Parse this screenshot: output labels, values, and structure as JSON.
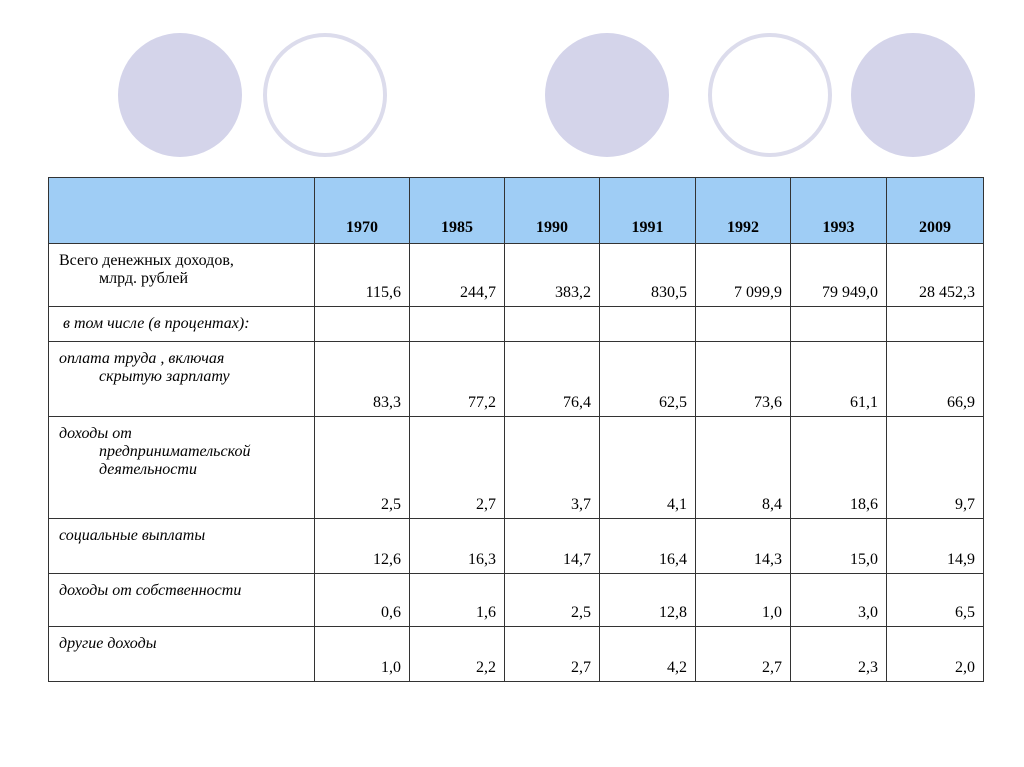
{
  "table": {
    "years": [
      "1970",
      "1985",
      "1990",
      "1991",
      "1992",
      "1993",
      "2009"
    ],
    "rows": {
      "total": {
        "label_line1": "Всего денежных доходов,",
        "label_line2": "млрд.  рублей",
        "values": [
          "115,6",
          "244,7",
          "383,2",
          "830,5",
          "7 099,9",
          "79 949,0",
          "28 452,3"
        ]
      },
      "including": {
        "label": "в том числе (в процентах):"
      },
      "wages": {
        "label_line1": "оплата труда , включая",
        "label_line2": "скрытую зарплату",
        "values": [
          "83,3",
          "77,2",
          "76,4",
          "62,5",
          "73,6",
          "61,1",
          "66,9"
        ]
      },
      "business": {
        "label_line1": "доходы от",
        "label_line2": "предпринимательской",
        "label_line3": "деятельности",
        "values": [
          "2,5",
          "2,7",
          "3,7",
          "4,1",
          "8,4",
          "18,6",
          "9,7"
        ]
      },
      "social": {
        "label": "социальные выплаты",
        "values": [
          "12,6",
          "16,3",
          "14,7",
          "16,4",
          "14,3",
          "15,0",
          "14,9"
        ]
      },
      "property": {
        "label": "доходы от собственности",
        "values": [
          "0,6",
          "1,6",
          "2,5",
          "12,8",
          "1,0",
          "3,0",
          "6,5"
        ]
      },
      "other": {
        "label": "другие доходы",
        "values": [
          "1,0",
          "2,2",
          "2,7",
          "4,2",
          "2,7",
          "2,3",
          "2,0"
        ]
      }
    }
  }
}
